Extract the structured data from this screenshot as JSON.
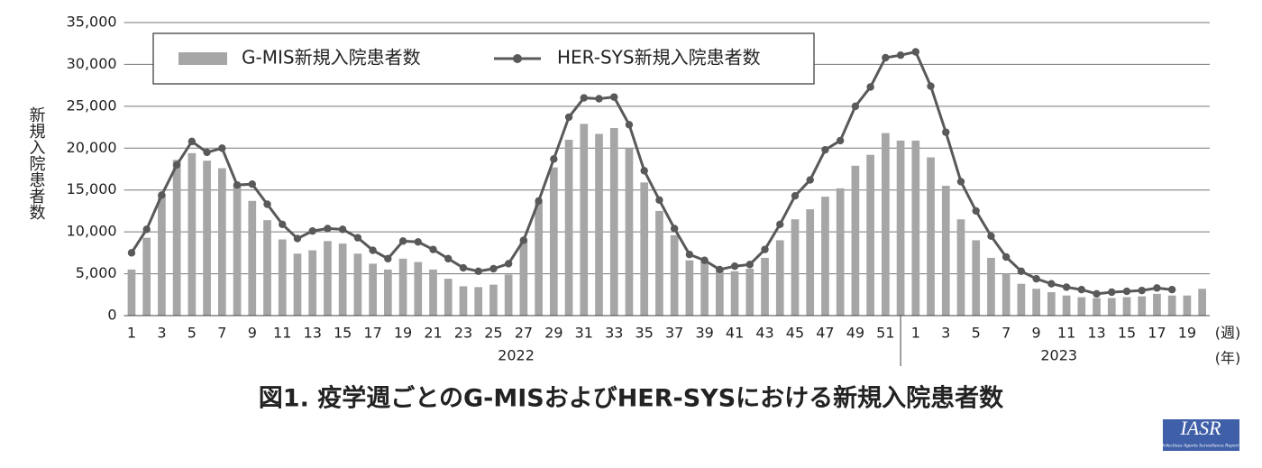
{
  "chart_data": {
    "type": "bar",
    "title": "図1. 疫学週ごとのG-MISおよびHER-SYSにおける新規入院患者数",
    "ylabel": "新規入院患者数",
    "xlabel": "(週)",
    "group_label": "(年)",
    "x_groups": [
      "2022",
      "2023"
    ],
    "categories": [
      "1",
      null,
      "3",
      null,
      "5",
      null,
      "7",
      null,
      "9",
      null,
      "11",
      null,
      "13",
      null,
      "15",
      null,
      "17",
      null,
      "19",
      null,
      "21",
      null,
      "23",
      null,
      "25",
      null,
      "27",
      null,
      "29",
      null,
      "31",
      null,
      "33",
      null,
      "35",
      null,
      "37",
      null,
      "39",
      null,
      "41",
      null,
      "43",
      null,
      "45",
      null,
      "47",
      null,
      "49",
      null,
      "51",
      null,
      "1",
      null,
      "3",
      null,
      "5",
      null,
      "7",
      null,
      "9",
      null,
      "11",
      null,
      "13",
      null,
      "15",
      null,
      "17",
      null,
      "19",
      null
    ],
    "series": [
      {
        "name": "G-MIS新規入院患者数",
        "type": "bar",
        "color": "#a6a6a6",
        "values": [
          5500,
          9300,
          14500,
          18600,
          19400,
          18500,
          17600,
          15700,
          13700,
          11400,
          9100,
          7400,
          7800,
          8900,
          8600,
          7400,
          6200,
          5500,
          6800,
          6400,
          5500,
          4400,
          3500,
          3400,
          3700,
          4900,
          9000,
          13500,
          17700,
          21000,
          22900,
          21700,
          22400,
          20000,
          15900,
          12500,
          9600,
          6600,
          6500,
          5600,
          5300,
          5600,
          6900,
          9000,
          11500,
          12700,
          14200,
          15200,
          17900,
          19200,
          21800,
          20900,
          20900,
          18900,
          15500,
          11500,
          9000,
          6900,
          5000,
          3800,
          3200,
          2800,
          2400,
          2200,
          2100,
          2100,
          2200,
          2300,
          2600,
          2400,
          2400,
          3200
        ]
      },
      {
        "name": "HER-SYS新規入院患者数",
        "type": "line",
        "color": "#595959",
        "values": [
          7500,
          10300,
          14400,
          18000,
          20800,
          19500,
          20000,
          15600,
          15700,
          13300,
          10900,
          9200,
          10100,
          10400,
          10300,
          9300,
          7800,
          6800,
          8900,
          8800,
          7900,
          6800,
          5700,
          5300,
          5600,
          6200,
          9000,
          13700,
          18700,
          23700,
          26000,
          25900,
          26100,
          22800,
          17300,
          13800,
          10400,
          7300,
          6600,
          5500,
          5900,
          6100,
          7900,
          10900,
          14300,
          16200,
          19800,
          20900,
          25000,
          27300,
          30800,
          31100,
          31500,
          27400,
          21900,
          16000,
          12500,
          9500,
          7000,
          5300,
          4400,
          3800,
          3400,
          3100,
          2600,
          2800,
          2900,
          3000,
          3300,
          3100,
          null,
          null
        ]
      }
    ],
    "ylim": [
      0,
      35000
    ],
    "yticks": [
      0,
      {
        "value": 5000,
        "label": "5,000"
      },
      {
        "value": 10000,
        "label": "10,000"
      },
      {
        "value": 15000,
        "label": "15,000"
      },
      {
        "value": 20000,
        "label": "20,000"
      },
      {
        "value": 25000,
        "label": "25,000"
      },
      {
        "value": 30000,
        "label": "30,000"
      },
      {
        "value": 35000,
        "label": "35,000"
      }
    ],
    "grid": true,
    "legend": "top-left"
  },
  "logo": {
    "title": "IASR",
    "subtitle": "Infectious Agents Surveillance Report"
  }
}
